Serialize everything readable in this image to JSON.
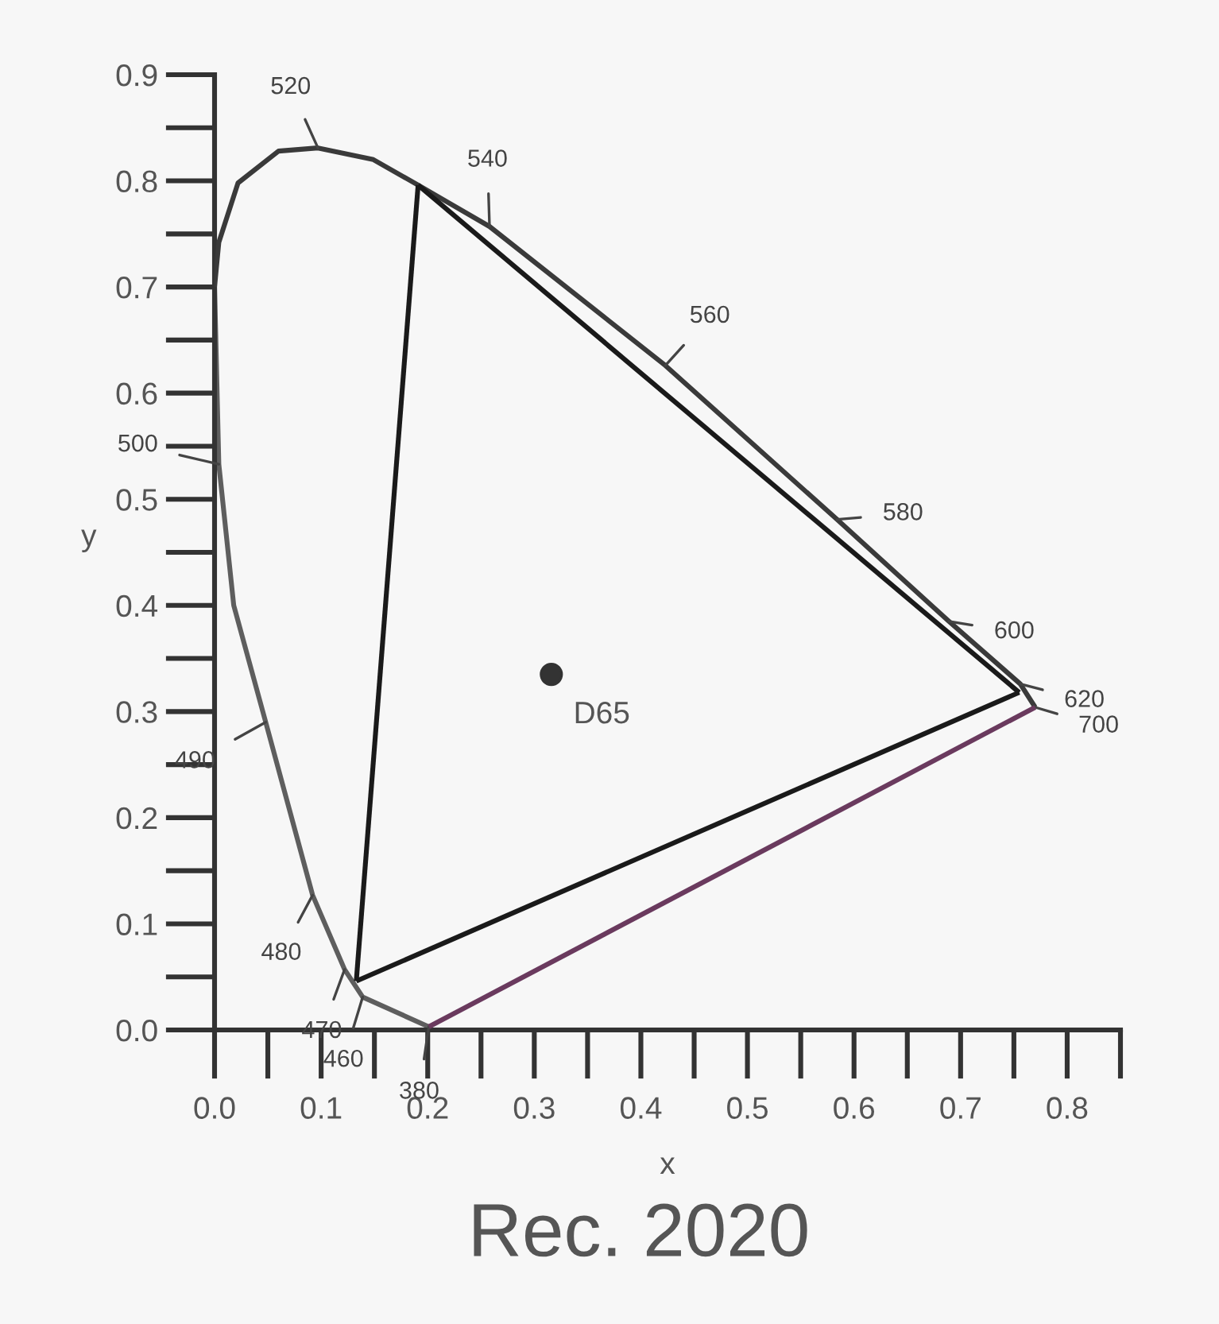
{
  "chart_data": {
    "type": "line",
    "title": "Rec. 2020",
    "xlabel": "x",
    "ylabel": "y",
    "series": [
      {
        "color": "#5e5e5e",
        "x": [
          0.0,
          0.004,
          0.018,
          0.048,
          0.092,
          0.122,
          0.139,
          0.201
        ],
        "values": [
          0.7,
          0.533,
          0.4,
          0.29,
          0.127,
          0.057,
          0.031,
          0.003
        ]
      },
      {
        "color": "#3a3a3a",
        "x": [
          0.0,
          0.004,
          0.022,
          0.06,
          0.097,
          0.149,
          0.191,
          0.258,
          0.423,
          0.584,
          0.689,
          0.756,
          0.77
        ],
        "values": [
          0.7,
          0.742,
          0.798,
          0.828,
          0.831,
          0.82,
          0.796,
          0.757,
          0.626,
          0.481,
          0.385,
          0.326,
          0.304
        ]
      },
      {
        "color": "#6a3a5e",
        "x": [
          0.201,
          0.77
        ],
        "values": [
          0.003,
          0.304
        ]
      },
      {
        "color": "#1a1a1a",
        "x": [
          0.191,
          0.755
        ],
        "values": [
          0.796,
          0.318
        ]
      },
      {
        "color": "#1a1a1a",
        "x": [
          0.133,
          0.755
        ],
        "values": [
          0.046,
          0.318
        ]
      },
      {
        "color": "#1a1a1a",
        "x": [
          0.133,
          0.191
        ],
        "values": [
          0.046,
          0.796
        ]
      },
      {
        "type": "scatter",
        "color": "#333333",
        "marker": "circle",
        "x": [
          0.316
        ],
        "values": [
          0.335
        ]
      }
    ],
    "annotations": [
      {
        "text": "380",
        "x": 0.201,
        "y": 0.003
      },
      {
        "text": "460",
        "x": 0.139,
        "y": 0.031
      },
      {
        "text": "470",
        "x": 0.122,
        "y": 0.057
      },
      {
        "text": "480",
        "x": 0.092,
        "y": 0.127
      },
      {
        "text": "490",
        "x": 0.048,
        "y": 0.29
      },
      {
        "text": "500",
        "x": 0.004,
        "y": 0.533
      },
      {
        "text": "520",
        "x": 0.097,
        "y": 0.831
      },
      {
        "text": "540",
        "x": 0.258,
        "y": 0.757
      },
      {
        "text": "560",
        "x": 0.423,
        "y": 0.626
      },
      {
        "text": "580",
        "x": 0.584,
        "y": 0.481
      },
      {
        "text": "600",
        "x": 0.689,
        "y": 0.385
      },
      {
        "text": "620",
        "x": 0.756,
        "y": 0.326
      },
      {
        "text": "700",
        "x": 0.77,
        "y": 0.304
      },
      {
        "text": "D65",
        "x": 0.316,
        "y": 0.335
      }
    ],
    "xlim": [
      0,
      0.85
    ],
    "ylim": [
      0,
      0.9
    ],
    "xticks": [
      {
        "value": 0,
        "label": "0.0"
      },
      0.1,
      0.2,
      0.3,
      0.4,
      0.5,
      0.6,
      0.7,
      0.8
    ],
    "yticks": [
      {
        "value": 0,
        "label": "0.0"
      },
      0.1,
      0.2,
      0.3,
      0.4,
      0.5,
      0.6,
      0.7,
      0.8,
      0.9
    ],
    "grid": false,
    "legend": false
  }
}
